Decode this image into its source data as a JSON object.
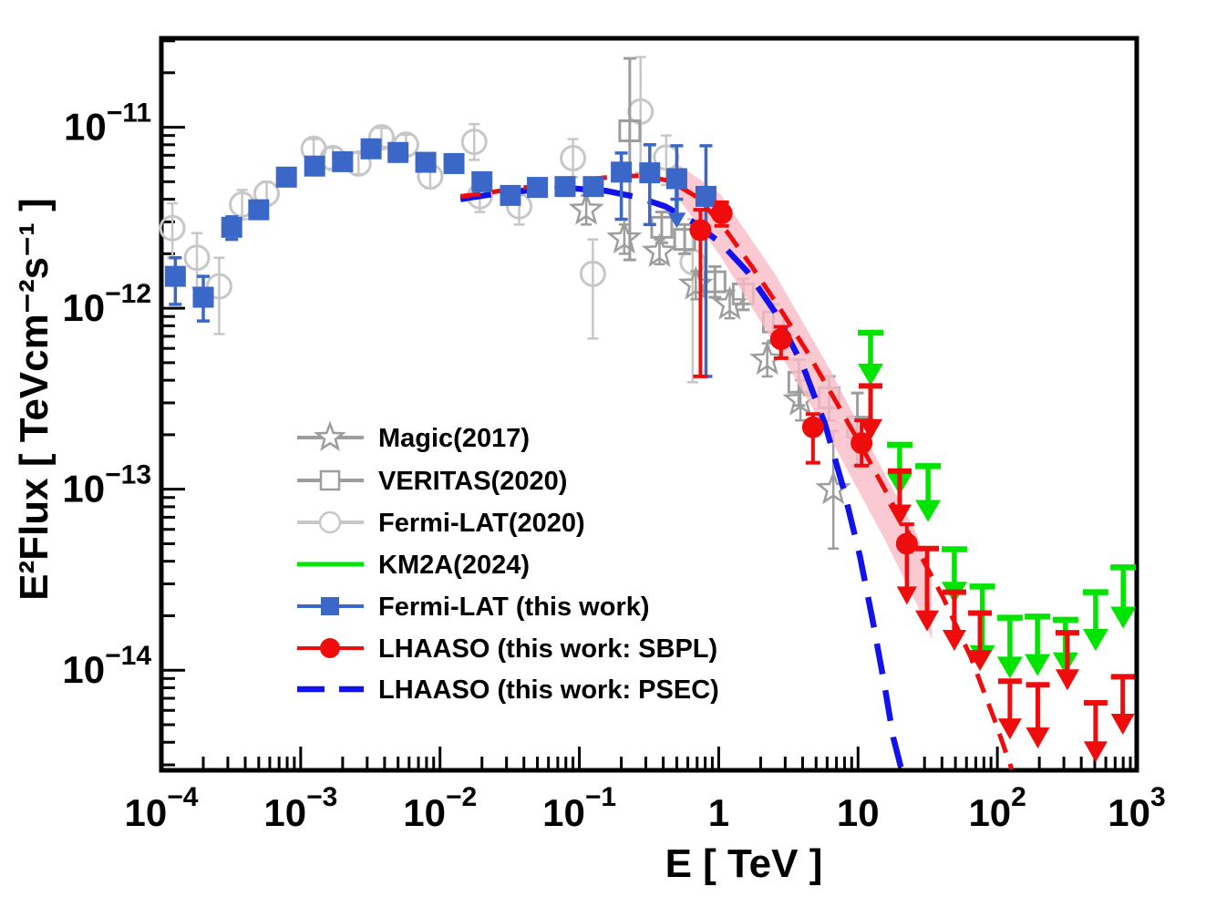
{
  "colors": {
    "frame": "#000000",
    "background": "#ffffff",
    "blue_marker": "#3b67c8",
    "blue_curve": "#1212ec",
    "red": "#ee0c0c",
    "green": "#00e400",
    "gray": "#9d9d9d",
    "gray_light": "#c7c7c7",
    "pink_band": "#f9bcc7",
    "text": "#000000"
  },
  "chart_data": {
    "type": "scatter",
    "title": "",
    "xlabel": "E [ TeV ]",
    "ylabel": "E²Flux [ TeVcm⁻²s⁻¹ ]",
    "x_scale": "log",
    "y_scale": "log",
    "xlim": [
      0.0001,
      1000.0
    ],
    "ylim": [
      2.8e-15,
      3.1e-11
    ],
    "grid": false,
    "legend_position": "center-left",
    "x_ticks": [
      {
        "v": 0.0001,
        "b": "10",
        "e": "−4"
      },
      {
        "v": 0.001,
        "b": "10",
        "e": "−3"
      },
      {
        "v": 0.01,
        "b": "10",
        "e": "−2"
      },
      {
        "v": 0.1,
        "b": "10",
        "e": "−1"
      },
      {
        "v": 1,
        "b": "1",
        "e": ""
      },
      {
        "v": 10,
        "b": "10",
        "e": ""
      },
      {
        "v": 100,
        "b": "10",
        "e": "2"
      },
      {
        "v": 1000,
        "b": "10",
        "e": "3"
      }
    ],
    "y_ticks": [
      {
        "v": 1e-11,
        "b": "10",
        "e": "−11"
      },
      {
        "v": 1e-12,
        "b": "10",
        "e": "−12"
      },
      {
        "v": 1e-13,
        "b": "10",
        "e": "−13"
      },
      {
        "v": 1e-14,
        "b": "10",
        "e": "−14"
      }
    ],
    "series": [
      {
        "name": "Magic(2017)",
        "marker": "open-star",
        "color": "#9d9d9d",
        "points": [
          [
            0.112,
            3.5e-12,
            2.9e-12,
            4.2e-12
          ],
          [
            0.21,
            2.43e-12,
            2e-12,
            2.9e-12
          ],
          [
            0.376,
            2.05e-12,
            1.75e-12,
            2.4e-12
          ],
          [
            0.685,
            1.35e-12,
            1.12e-12,
            1.6e-12
          ],
          [
            1.2,
            1.05e-12,
            8.8e-13,
            1.25e-12
          ],
          [
            2.23,
            5.2e-13,
            4.2e-13,
            6.4e-13
          ],
          [
            3.86,
            3.1e-13,
            2.4e-13,
            4e-13
          ],
          [
            6.65,
            1e-13,
            4.7e-14,
            2.1e-13
          ]
        ]
      },
      {
        "name": "VERITAS(2020)",
        "marker": "open-square",
        "color": "#9d9d9d",
        "points": [
          [
            0.23,
            9.55e-12,
            1.85e-12,
            2.4e-11
          ],
          [
            0.39,
            2.8e-12,
            2.3e-12,
            3.4e-12
          ],
          [
            0.57,
            2.4e-12,
            2e-12,
            2.9e-12
          ],
          [
            0.94,
            1.4e-12,
            1.15e-12,
            1.7e-12
          ],
          [
            1.5,
            1.2e-12,
            9.8e-13,
            1.45e-12
          ],
          [
            2.47,
            8.4e-13,
            6.6e-13,
            1.05e-12
          ],
          [
            3.76,
            3.9e-13,
            2.9e-13,
            5.2e-13
          ],
          [
            6.2,
            3.2e-13,
            2.4e-13,
            4.2e-13
          ],
          [
            9.9,
            2.2e-13,
            1.35e-13,
            3.4e-13
          ]
        ]
      },
      {
        "name": "Fermi-LAT(2020)",
        "marker": "open-circle",
        "color": "#c7c7c7",
        "points": [
          [
            0.00012,
            2.77e-12,
            1.9e-12,
            3.8e-12
          ],
          [
            0.00018,
            1.9e-12,
            1.3e-12,
            2.6e-12
          ],
          [
            0.00026,
            1.32e-12,
            7.2e-13,
            1.9e-12
          ],
          [
            0.00038,
            3.74e-12,
            3.1e-12,
            4.5e-12
          ],
          [
            0.00057,
            4.3e-12,
            3.7e-12,
            5e-12
          ],
          [
            0.00124,
            7.6e-12,
            6.7e-12,
            8.6e-12
          ],
          [
            0.0017,
            6.75e-12,
            5.9e-12,
            7.7e-12
          ],
          [
            0.0026,
            6.3e-12,
            5.5e-12,
            7.2e-12
          ],
          [
            0.0038,
            8.8e-12,
            7.8e-12,
            9.9e-12
          ],
          [
            0.0057,
            8e-12,
            7e-12,
            9.1e-12
          ],
          [
            0.0085,
            5.35e-12,
            4.6e-12,
            6.2e-12
          ],
          [
            0.0176,
            8.3e-12,
            6.6e-12,
            1.04e-11
          ],
          [
            0.0193,
            4.16e-12,
            3.4e-12,
            5.1e-12
          ],
          [
            0.037,
            3.66e-12,
            2.9e-12,
            4.6e-12
          ],
          [
            0.09,
            6.75e-12,
            5.3e-12,
            8.6e-12
          ],
          [
            0.125,
            1.55e-12,
            6.8e-13,
            2.4e-12
          ],
          [
            0.275,
            1.22e-11,
            5.6e-12,
            2.44e-11
          ],
          [
            0.42,
            6.8e-12,
            4.8e-12,
            9e-12
          ],
          [
            0.65,
            1.8e-12,
            3.9e-13,
            3.1e-12
          ]
        ]
      },
      {
        "name": "KM2A(2024)",
        "marker": "line",
        "color": "#00e400",
        "upper_limits": [
          [
            12.3,
            7.32e-13,
            3.74e-13
          ],
          [
            19.9,
            1.76e-13,
            9.3e-14
          ],
          [
            31.8,
            1.34e-13,
            6.6e-14
          ],
          [
            49.1,
            4.66e-14,
            2.33e-14
          ],
          [
            78,
            2.9e-14,
            1.04e-14
          ],
          [
            123,
            1.95e-14,
            9e-15
          ],
          [
            194,
            1.98e-14,
            9.3e-15
          ],
          [
            308,
            1.9e-14,
            9.5e-15
          ],
          [
            507,
            2.7e-14,
            1.28e-14
          ],
          [
            800,
            3.7e-14,
            1.7e-14
          ]
        ]
      },
      {
        "name": "Fermi-LAT (this work)",
        "marker": "filled-square",
        "color": "#3b67c8",
        "points": [
          [
            0.000126,
            1.5e-12,
            1.05e-12,
            1.9e-12
          ],
          [
            0.0002,
            1.15e-12,
            8.5e-13,
            1.5e-12
          ],
          [
            0.00032,
            2.8e-12,
            2.4e-12,
            3.2e-12
          ],
          [
            0.0005,
            3.5e-12,
            3.25e-12,
            3.8e-12
          ],
          [
            0.00079,
            5.3e-12,
            5e-12,
            5.65e-12
          ],
          [
            0.00126,
            6.1e-12,
            5.75e-12,
            6.5e-12
          ],
          [
            0.002,
            6.45e-12,
            6.1e-12,
            6.85e-12
          ],
          [
            0.0032,
            7.6e-12,
            7.2e-12,
            8.05e-12
          ],
          [
            0.005,
            7.25e-12,
            6.85e-12,
            7.7e-12
          ],
          [
            0.0079,
            6.4e-12,
            6.05e-12,
            6.8e-12
          ],
          [
            0.0126,
            6.3e-12,
            5.95e-12,
            6.7e-12
          ],
          [
            0.02,
            5e-12,
            4.7e-12,
            5.3e-12
          ],
          [
            0.032,
            4.2e-12,
            3.8e-12,
            4.65e-12
          ],
          [
            0.05,
            4.65e-12,
            4.3e-12,
            5e-12
          ],
          [
            0.079,
            4.7e-12,
            4.35e-12,
            5.05e-12
          ],
          [
            0.126,
            4.7e-12,
            4.3e-12,
            5.1e-12
          ],
          [
            0.2,
            5.65e-12,
            3.1e-12,
            7.2e-12
          ],
          [
            0.32,
            5.6e-12,
            2.9e-12,
            8e-12
          ],
          [
            0.5,
            5.2e-12,
            4e-12,
            7.9e-12
          ],
          [
            0.81,
            4.15e-12,
            4.2e-13,
            7.9e-12
          ]
        ],
        "upper_limits": [
          [
            0.5,
            4.66e-12,
            2.77e-12
          ]
        ]
      },
      {
        "name": "LHAASO (this work: SBPL)",
        "marker": "filled-circle",
        "color": "#ee0c0c",
        "band_color": "#f9bcc7",
        "points": [
          [
            0.74,
            2.7e-12,
            4.2e-13,
            3.5e-12
          ],
          [
            1.05,
            3.35e-12,
            2.85e-12,
            3.85e-12
          ],
          [
            2.8,
            6.75e-13,
            5.3e-13,
            7.9e-13
          ],
          [
            4.75,
            2.2e-13,
            1.4e-13,
            2.6e-13
          ],
          [
            10.6,
            1.8e-13,
            1.35e-13,
            2.4e-13
          ],
          [
            22.4,
            5e-14,
            5e-14,
            6.4e-14
          ]
        ],
        "point_arrows": [
          [
            22.4,
            5e-14,
            2.3e-14
          ]
        ],
        "upper_limits": [
          [
            12.3,
            3.72e-13,
            1.87e-13
          ],
          [
            19.9,
            1.26e-13,
            6.3e-14
          ],
          [
            31.3,
            4.7e-14,
            1.64e-14
          ],
          [
            49.1,
            2.7e-14,
            1.28e-14
          ],
          [
            75,
            2.07e-14,
            9.9e-15
          ],
          [
            123,
            8.7e-15,
            4.15e-15
          ],
          [
            195,
            8.3e-15,
            3.7e-15
          ],
          [
            318,
            1.61e-14,
            7.75e-15
          ],
          [
            507,
            6.6e-15,
            3.1e-15
          ],
          [
            794,
            9.2e-15,
            4.4e-15
          ]
        ],
        "fit_curve": [
          [
            0.014,
            4.15e-12
          ],
          [
            0.0204,
            4.3e-12
          ],
          [
            0.032,
            4.55e-12
          ],
          [
            0.0586,
            4.8e-12
          ],
          [
            0.107,
            5.1e-12
          ],
          [
            0.181,
            5.35e-12
          ],
          [
            0.285,
            5.4e-12
          ],
          [
            0.448,
            5.05e-12
          ],
          [
            0.703,
            4.1e-12
          ],
          [
            1.1,
            2.77e-12
          ],
          [
            1.73,
            1.7e-12
          ],
          [
            2.72,
            1.01e-12
          ],
          [
            4.28,
            5.8e-13
          ],
          [
            6.73,
            3.18e-13
          ],
          [
            10.6,
            1.72e-13
          ],
          [
            16.6,
            9.1e-14
          ],
          [
            26.1,
            4.8e-14
          ],
          [
            41,
            2.5e-14
          ],
          [
            64.5,
            1.18e-14
          ],
          [
            94,
            5.5e-15
          ],
          [
            127,
            2.83e-15
          ]
        ],
        "band_upper": [
          [
            0.496,
            6.34e-12
          ],
          [
            1.02,
            4.3e-12
          ],
          [
            2.53,
            1.55e-12
          ],
          [
            6.28,
            4.6e-13
          ],
          [
            15.5,
            1.22e-13
          ],
          [
            26.2,
            5.74e-14
          ],
          [
            33.9,
            3.2e-14
          ]
        ],
        "band_lower": [
          [
            0.496,
            4.2e-12
          ],
          [
            1.02,
            1.96e-12
          ],
          [
            2.53,
            6.3e-13
          ],
          [
            6.28,
            1.93e-13
          ],
          [
            15.5,
            5.29e-14
          ],
          [
            26.2,
            2.35e-14
          ],
          [
            33.9,
            1.48e-14
          ]
        ]
      },
      {
        "name": "LHAASO (this work: PSEC)",
        "marker": "dashed-line",
        "color": "#1212ec",
        "fit_curve": [
          [
            0.014,
            4e-12
          ],
          [
            0.0256,
            4.3e-12
          ],
          [
            0.0467,
            4.5e-12
          ],
          [
            0.0854,
            4.6e-12
          ],
          [
            0.156,
            4.45e-12
          ],
          [
            0.264,
            4.1e-12
          ],
          [
            0.415,
            3.65e-12
          ],
          [
            0.652,
            3e-12
          ],
          [
            1.03,
            2.3e-12
          ],
          [
            1.61,
            1.59e-12
          ],
          [
            2.53,
            9.55e-13
          ],
          [
            3.98,
            4.9e-13
          ],
          [
            5.79,
            2.3e-13
          ],
          [
            7.83,
            1.02e-13
          ],
          [
            10.3,
            4.3e-14
          ],
          [
            12.7,
            1.9e-14
          ],
          [
            15.4,
            8.5e-15
          ],
          [
            17.9,
            4.25e-15
          ],
          [
            20.5,
            2.83e-15
          ]
        ]
      }
    ],
    "legend": {
      "items": [
        0,
        1,
        2,
        3,
        4,
        5,
        6
      ]
    }
  }
}
